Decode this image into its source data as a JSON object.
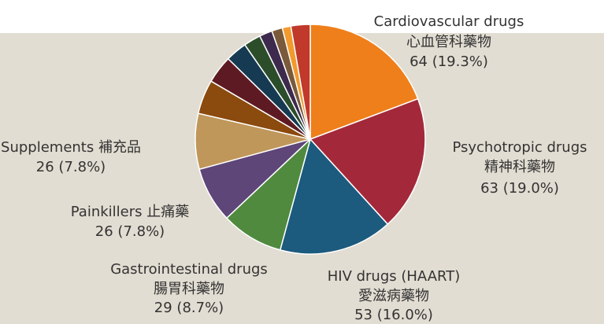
{
  "chart_data": {
    "type": "pie",
    "categories": [
      "Cardiovascular drugs",
      "Psychotropic drugs",
      "HIV drugs (HAART)",
      "Gastrointestinal drugs",
      "Painkillers 止痛藥",
      "Supplements 補充品",
      null,
      null,
      null,
      null,
      null,
      null,
      null,
      null
    ],
    "categories_zh": [
      "心血管科藥物",
      "精神科藥物",
      "愛滋病藥物",
      "腸胃科藥物",
      null,
      null,
      null,
      null,
      null,
      null,
      null,
      null,
      null,
      null
    ],
    "values": [
      64,
      63,
      53,
      29,
      26,
      26,
      16,
      13,
      10,
      8,
      6,
      5,
      4,
      9
    ],
    "value_labels": [
      "64 (19.3%)",
      "63 (19.0%)",
      "53 (16.0%)",
      "29 (8.7%)",
      "26 (7.8%)",
      "26 (7.8%)",
      null,
      null,
      null,
      null,
      null,
      null,
      null,
      null
    ],
    "colors": [
      "#ef7f1a",
      "#a3293a",
      "#1c5a7e",
      "#4f8a3f",
      "#5e4678",
      "#c0975a",
      "#8b4a0e",
      "#5e1a22",
      "#163a52",
      "#2c4d2a",
      "#3d2a4d",
      "#7a5a3a",
      "#f29a2e",
      "#c0392b"
    ]
  }
}
